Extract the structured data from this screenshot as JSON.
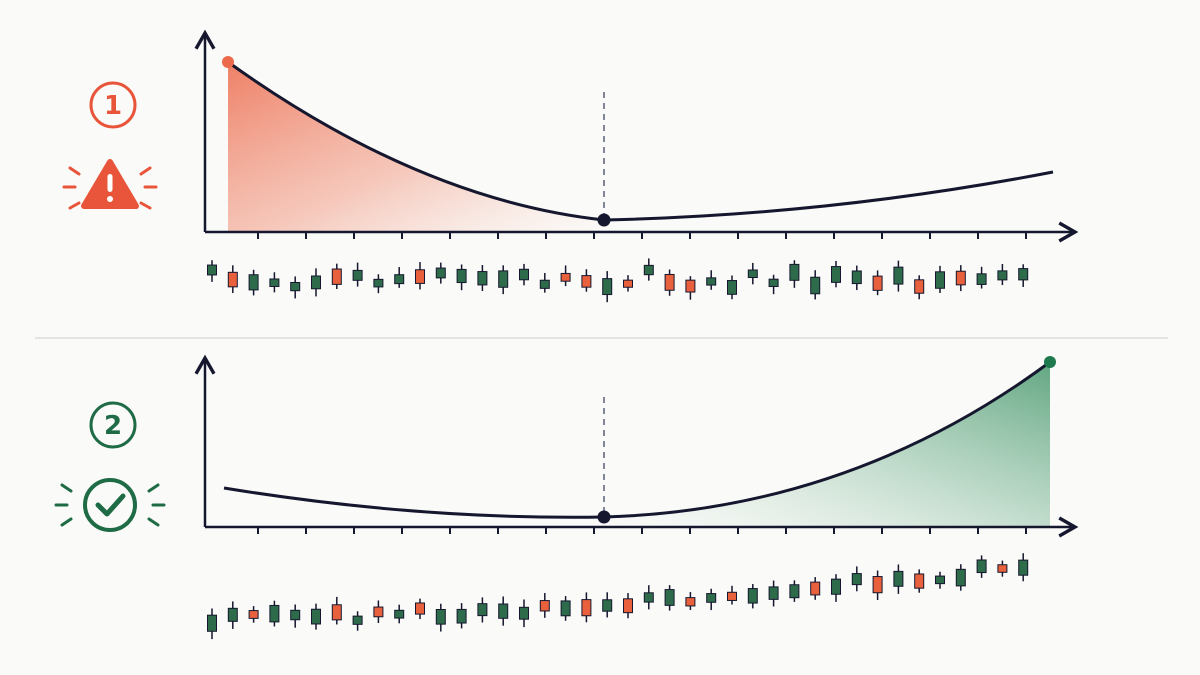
{
  "panels": [
    {
      "step": "1"
    },
    {
      "step": "2"
    }
  ]
}
